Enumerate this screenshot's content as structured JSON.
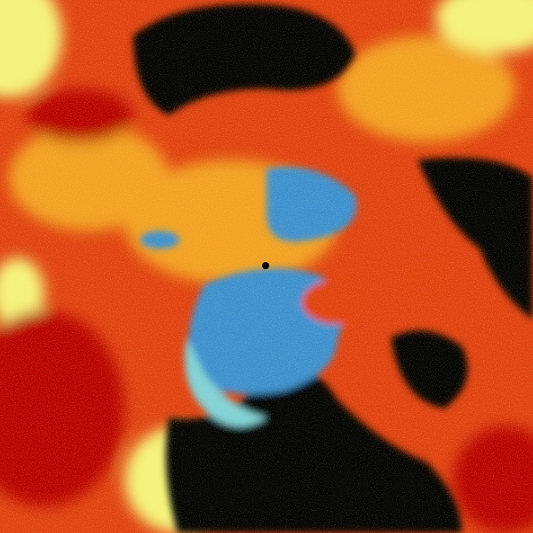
{
  "image": {
    "kind": "weather radar reflectivity/correlation scan",
    "colors": {
      "no_echo": "#000000",
      "low": "#3a8fd0",
      "low_mid": "#7fd0d8",
      "mid": "#f4f27a",
      "mid_high": "#f2a020",
      "high": "#e04010",
      "max": "#b80000"
    }
  }
}
